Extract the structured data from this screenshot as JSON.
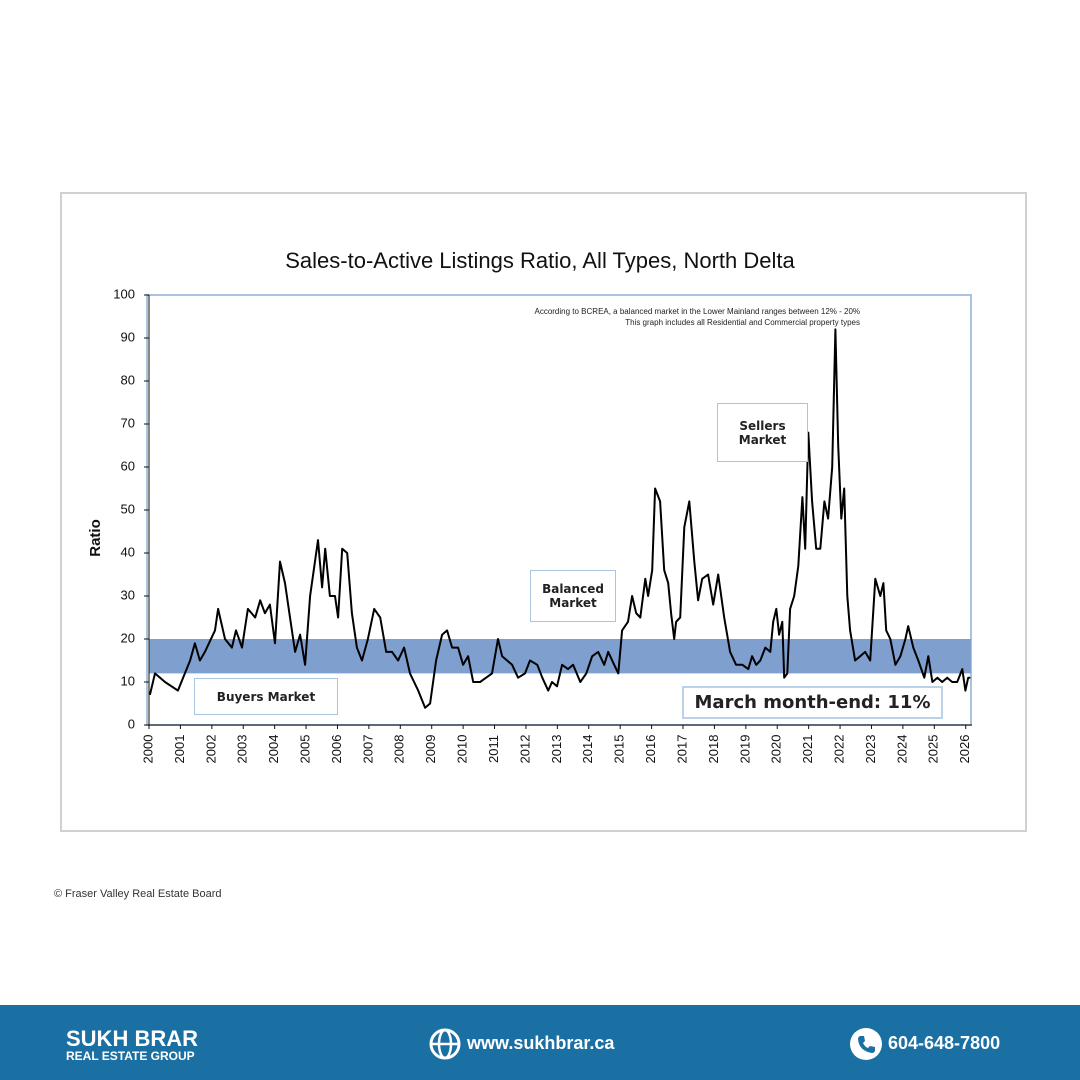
{
  "chart_data": {
    "type": "line",
    "title": "Sales-to-Active Listings Ratio, All Types, North Delta",
    "y_label": "Ratio",
    "notes": [
      "According to BCREA, a balanced market in the Lower Mainland ranges between 12% - 20%",
      "This graph includes all Residential and Commercial property types"
    ],
    "annotations": [
      "Sellers Market",
      "Balanced Market",
      "Buyers Market",
      "March month-end: 11%"
    ],
    "balanced_band": [
      12,
      20
    ],
    "band_color": "#7f9fcf",
    "color": "#000000",
    "xlim": [
      2000,
      2026.2
    ],
    "xticks": [
      2000,
      2001,
      2002,
      2003,
      2004,
      2005,
      2006,
      2007,
      2008,
      2009,
      2010,
      2011,
      2012,
      2013,
      2014,
      2015,
      2016,
      2017,
      2018,
      2019,
      2020,
      2021,
      2022,
      2023,
      2024,
      2025,
      2026
    ],
    "ylim": [
      0,
      100
    ],
    "yticks": [
      0,
      10,
      20,
      30,
      40,
      50,
      60,
      70,
      80,
      90,
      100
    ],
    "x": [
      2000.03,
      2000.19,
      2000.51,
      2000.92,
      2001.31,
      2001.46,
      2001.62,
      2001.78,
      2002.1,
      2002.2,
      2002.42,
      2002.64,
      2002.77,
      2002.96,
      2003.15,
      2003.38,
      2003.54,
      2003.69,
      2003.85,
      2004.01,
      2004.17,
      2004.33,
      2004.49,
      2004.65,
      2004.81,
      2004.97,
      2005.13,
      2005.38,
      2005.51,
      2005.61,
      2005.76,
      2005.92,
      2006.02,
      2006.15,
      2006.31,
      2006.46,
      2006.62,
      2006.78,
      2006.97,
      2007.17,
      2007.36,
      2007.55,
      2007.74,
      2007.93,
      2008.12,
      2008.31,
      2008.57,
      2008.79,
      2008.95,
      2009.14,
      2009.33,
      2009.49,
      2009.65,
      2009.84,
      2010.0,
      2010.16,
      2010.32,
      2010.54,
      2010.73,
      2010.92,
      2011.11,
      2011.24,
      2011.4,
      2011.56,
      2011.75,
      2011.97,
      2012.13,
      2012.36,
      2012.52,
      2012.71,
      2012.83,
      2012.99,
      2013.15,
      2013.34,
      2013.5,
      2013.73,
      2013.92,
      2014.11,
      2014.3,
      2014.49,
      2014.62,
      2014.81,
      2014.94,
      2015.06,
      2015.25,
      2015.38,
      2015.51,
      2015.64,
      2015.8,
      2015.89,
      2016.02,
      2016.11,
      2016.27,
      2016.4,
      2016.53,
      2016.62,
      2016.72,
      2016.78,
      2016.91,
      2017.04,
      2017.2,
      2017.36,
      2017.48,
      2017.61,
      2017.8,
      2017.96,
      2018.12,
      2018.31,
      2018.5,
      2018.69,
      2018.89,
      2019.08,
      2019.2,
      2019.33,
      2019.46,
      2019.62,
      2019.78,
      2019.87,
      2019.97,
      2020.06,
      2020.16,
      2020.22,
      2020.32,
      2020.41,
      2020.54,
      2020.67,
      2020.8,
      2020.89,
      2020.99,
      2021.11,
      2021.24,
      2021.37,
      2021.5,
      2021.62,
      2021.75,
      2021.85,
      2021.94,
      2022.04,
      2022.13,
      2022.23,
      2022.32,
      2022.48,
      2022.64,
      2022.8,
      2022.96,
      2023.12,
      2023.28,
      2023.38,
      2023.47,
      2023.6,
      2023.76,
      2023.92,
      2024.08,
      2024.17,
      2024.33,
      2024.49,
      2024.68,
      2024.81,
      2024.94,
      2025.1,
      2025.25,
      2025.41,
      2025.57,
      2025.73,
      2025.89,
      2025.99,
      2026.08,
      2026.15
    ],
    "values": [
      7,
      12,
      10,
      8,
      15,
      19,
      15,
      17,
      22,
      27,
      20,
      18,
      22,
      18,
      27,
      25,
      29,
      26,
      28,
      19,
      38,
      33,
      25,
      17,
      21,
      14,
      30,
      43,
      32,
      41,
      30,
      30,
      25,
      41,
      40,
      26,
      18,
      15,
      20,
      27,
      25,
      17,
      17,
      15,
      18,
      12,
      8,
      4,
      5,
      15,
      21,
      22,
      18,
      18,
      14,
      16,
      10,
      10,
      11,
      12,
      20,
      16,
      15,
      14,
      11,
      12,
      15,
      14,
      11,
      8,
      10,
      9,
      14,
      13,
      14,
      10,
      12,
      16,
      17,
      14,
      17,
      14,
      12,
      22,
      24,
      30,
      26,
      25,
      34,
      30,
      36,
      55,
      52,
      36,
      33,
      26,
      20,
      24,
      25,
      46,
      52,
      38,
      29,
      34,
      35,
      28,
      35,
      25,
      17,
      14,
      14,
      13,
      16,
      14,
      15,
      18,
      17,
      24,
      27,
      21,
      24,
      11,
      12,
      27,
      30,
      37,
      53,
      41,
      68,
      52,
      41,
      41,
      52,
      48,
      60,
      92,
      65,
      48,
      55,
      30,
      22,
      15,
      16,
      17,
      15,
      34,
      30,
      33,
      22,
      20,
      14,
      16,
      20,
      23,
      18,
      15,
      11,
      16,
      10,
      11,
      10,
      11,
      10,
      10,
      13,
      8,
      11,
      11
    ]
  },
  "source": "© Fraser Valley Real Estate Board",
  "footer": {
    "brand": "SUKH BRAR",
    "brand_sub": "REAL ESTATE GROUP",
    "website": "www.sukhbrar.ca",
    "phone": "604-648-7800"
  }
}
